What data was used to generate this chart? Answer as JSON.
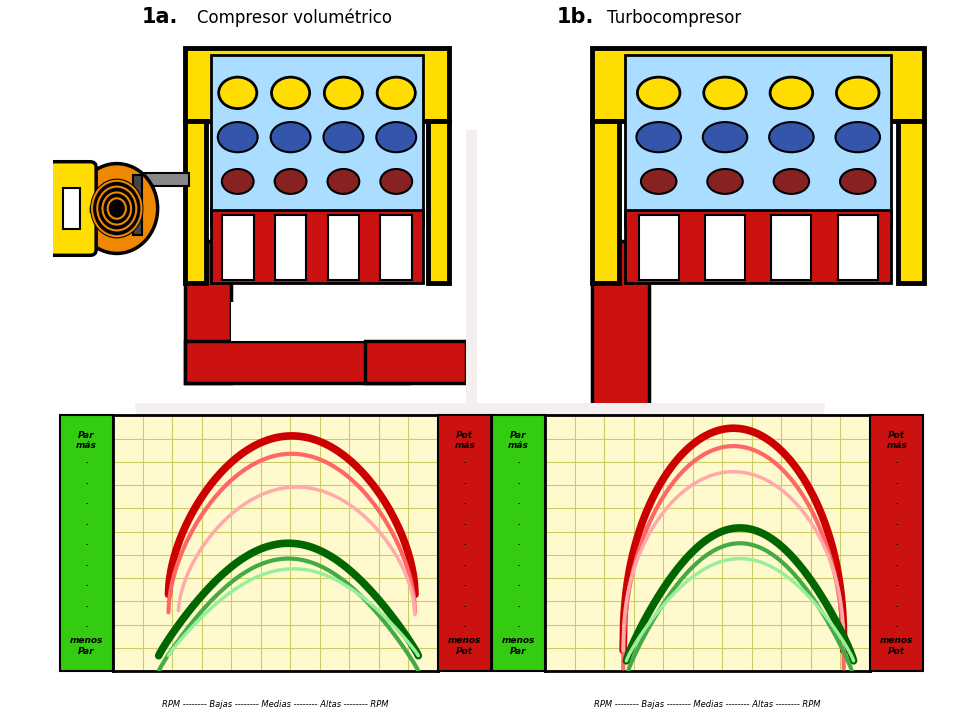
{
  "title_1a": "1a.",
  "title_1a_sub": "Compresor volumétrico",
  "title_1b": "1b.",
  "title_1b_sub": "Turbocompresor",
  "bg_color": "#ffffff",
  "watermark_fill": "#e0c8c8",
  "chart_bg": "#fffacd",
  "green_sidebar": "#33cc11",
  "red_sidebar": "#cc1111",
  "grid_color": "#cccc66",
  "red_main": "#cc0000",
  "red_light": "#ffaaaa",
  "green_main": "#006600",
  "green_light": "#99ee99",
  "yellow": "#ffdd00",
  "black": "#000000",
  "red_pipe": "#cc1111",
  "light_blue": "#aaddff",
  "orange": "#ee8800",
  "dark_brown": "#221100",
  "gray": "#888888",
  "white": "#ffffff",
  "blue_cyl": "#3355aa",
  "dark_red_cyl": "#882222",
  "xlabel": "RPM -------- Bajas -------- Medias -------- Altas -------- RPM"
}
